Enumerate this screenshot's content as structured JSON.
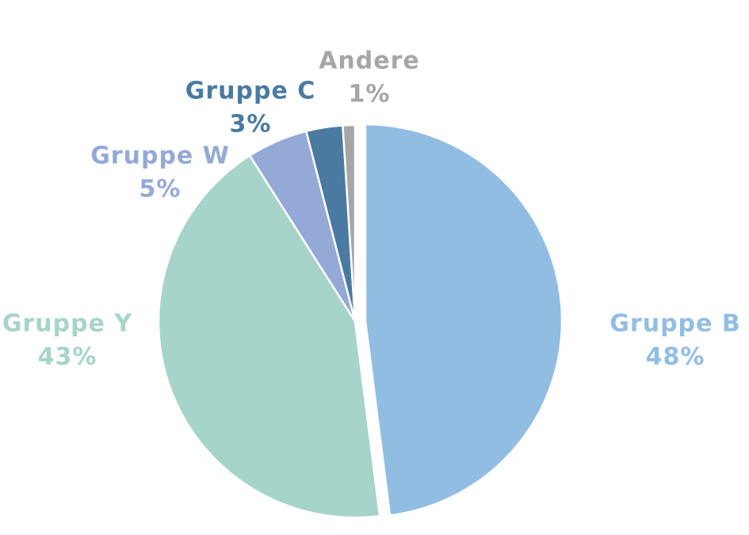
{
  "chart_data": {
    "type": "pie",
    "categories": [
      "Gruppe B",
      "Gruppe Y",
      "Gruppe W",
      "Gruppe C",
      "Andere"
    ],
    "values": [
      48,
      43,
      5,
      3,
      1
    ],
    "value_labels": [
      "48%",
      "43%",
      "5%",
      "3%",
      "1%"
    ],
    "colors": [
      "#92bde3",
      "#a6d4c8",
      "#95a9d6",
      "#4a7aa0",
      "#a6a6a6"
    ],
    "exploded": "Gruppe B"
  }
}
